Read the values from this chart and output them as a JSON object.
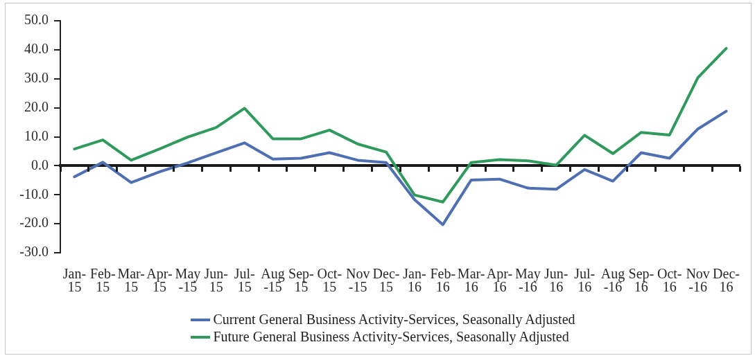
{
  "chart_data": {
    "type": "line",
    "categories": [
      "Jan-15",
      "Feb-15",
      "Mar-15",
      "Apr-15",
      "May-15",
      "Jun-15",
      "Jul-15",
      "Aug-15",
      "Sep-15",
      "Oct-15",
      "Nov-15",
      "Dec-15",
      "Jan-16",
      "Feb-16",
      "Mar-16",
      "Apr-16",
      "May-16",
      "Jun-16",
      "Jul-16",
      "Aug-16",
      "Sep-16",
      "Oct-16",
      "Nov-16",
      "Dec-16"
    ],
    "series": [
      {
        "name": "Current General Business Activity-Services, Seasonally Adjusted",
        "color": "#4f6fb3",
        "values": [
          -3.8,
          1.2,
          -5.8,
          -2.1,
          1.0,
          4.5,
          7.9,
          2.3,
          2.6,
          4.5,
          1.9,
          1.1,
          -11.7,
          -20.3,
          -4.9,
          -4.6,
          -7.7,
          -8.1,
          -1.3,
          -5.3,
          4.5,
          2.6,
          12.7,
          18.8
        ]
      },
      {
        "name": "Future General Business Activity-Services, Seasonally Adjusted",
        "color": "#2f9a5c",
        "values": [
          5.8,
          8.9,
          1.9,
          5.8,
          9.9,
          13.2,
          19.8,
          9.3,
          9.3,
          12.3,
          7.5,
          4.7,
          -10.1,
          -12.5,
          1.1,
          2.1,
          1.7,
          0.2,
          10.5,
          4.2,
          11.5,
          10.6,
          30.4,
          40.5
        ]
      }
    ],
    "ylim": [
      -30,
      50
    ],
    "yticks": [
      {
        "value": -30,
        "label": "-30.0"
      },
      {
        "value": -20,
        "label": "-20.0"
      },
      {
        "value": -10,
        "label": "-10.0"
      },
      {
        "value": 0,
        "label": "0.0"
      },
      {
        "value": 10,
        "label": "10.0"
      },
      {
        "value": 20,
        "label": "20.0"
      },
      {
        "value": 30,
        "label": "30.0"
      },
      {
        "value": 40,
        "label": "40.0"
      },
      {
        "value": 50,
        "label": "50.0"
      }
    ],
    "legend": "bottom",
    "marker": "none",
    "line_style": "solid"
  }
}
